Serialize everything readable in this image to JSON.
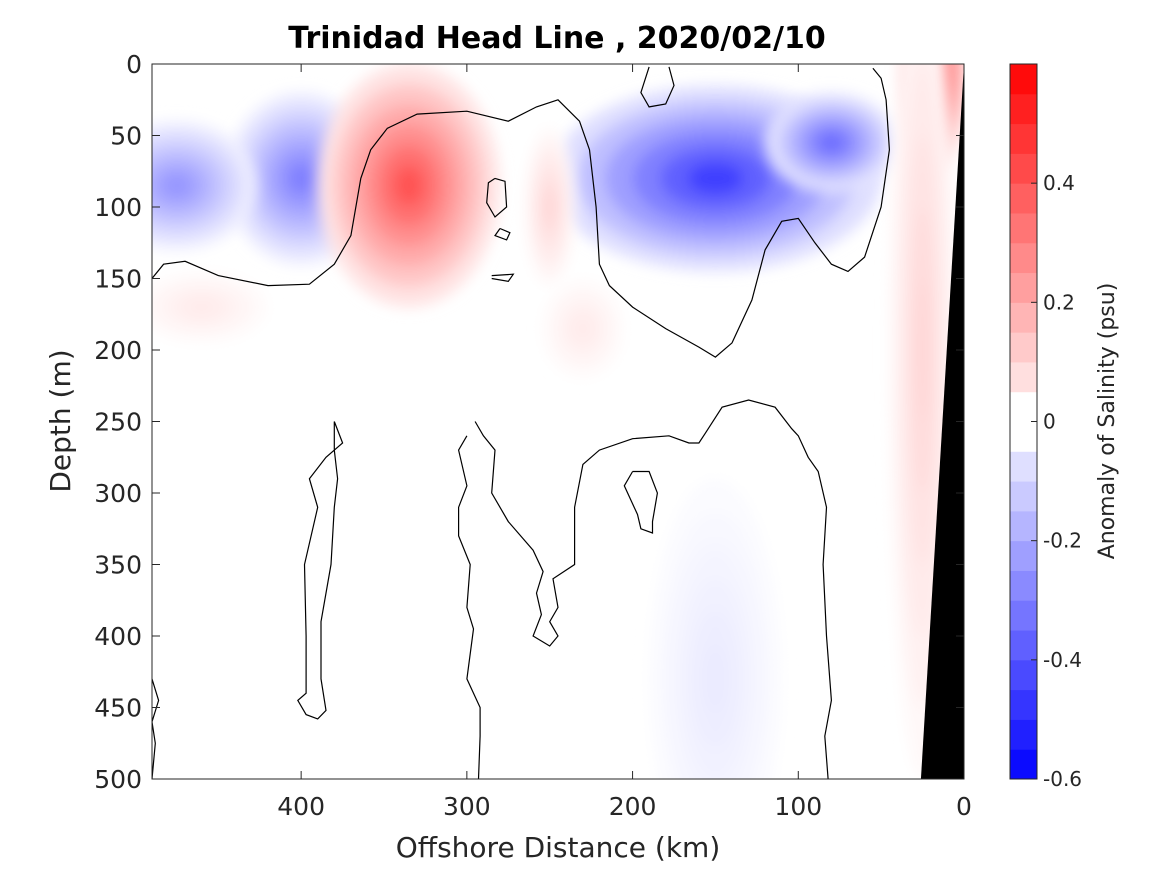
{
  "chart_data": {
    "type": "heatmap",
    "title": "Trinidad Head Line , 2020/02/10",
    "xlabel": "Offshore Distance (km)",
    "ylabel": "Depth (m)",
    "xlim": [
      490,
      0
    ],
    "ylim": [
      0,
      500
    ],
    "x_reversed": true,
    "y_reversed": true,
    "x_ticks": [
      400,
      300,
      200,
      100,
      0
    ],
    "y_ticks": [
      0,
      50,
      100,
      150,
      200,
      250,
      300,
      350,
      400,
      450,
      500
    ],
    "colorbar": {
      "label": "Anomaly of Salinity (psu)",
      "range": [
        -0.6,
        0.6
      ],
      "levels": 24,
      "step": 0.05,
      "ticks": [
        -0.6,
        -0.4,
        -0.2,
        0,
        0.2,
        0.4
      ],
      "tick_labels": [
        "-0.6",
        "-0.4",
        "-0.2",
        "0",
        "0.2",
        "0.4"
      ],
      "negative_color": "#0000ff",
      "zero_color": "#ffffff",
      "positive_color": "#ff0000"
    },
    "features": [
      {
        "kind": "fresh",
        "x": 400,
        "depth": 80,
        "value": -0.3
      },
      {
        "kind": "fresh",
        "x": 475,
        "depth": 85,
        "value": -0.25
      },
      {
        "kind": "fresh",
        "x": 150,
        "depth": 80,
        "value": -0.45
      },
      {
        "kind": "fresh",
        "x": 80,
        "depth": 55,
        "value": -0.35
      },
      {
        "kind": "fresh",
        "x": 150,
        "depth": 430,
        "value": -0.05
      },
      {
        "kind": "salty",
        "x": 335,
        "depth": 85,
        "value": 0.4
      },
      {
        "kind": "salty",
        "x": 250,
        "depth": 100,
        "value": 0.1
      },
      {
        "kind": "salty",
        "x": 18,
        "depth": 5,
        "value": 0.55
      },
      {
        "kind": "salty",
        "x": 25,
        "depth": 200,
        "value": 0.1
      },
      {
        "kind": "salty",
        "x": 460,
        "depth": 170,
        "value": 0.05
      },
      {
        "kind": "salty",
        "x": 230,
        "depth": 185,
        "value": 0.05
      }
    ],
    "bathymetry": {
      "color": "#000000",
      "surface_x": 0,
      "bottom_x": 26
    }
  }
}
